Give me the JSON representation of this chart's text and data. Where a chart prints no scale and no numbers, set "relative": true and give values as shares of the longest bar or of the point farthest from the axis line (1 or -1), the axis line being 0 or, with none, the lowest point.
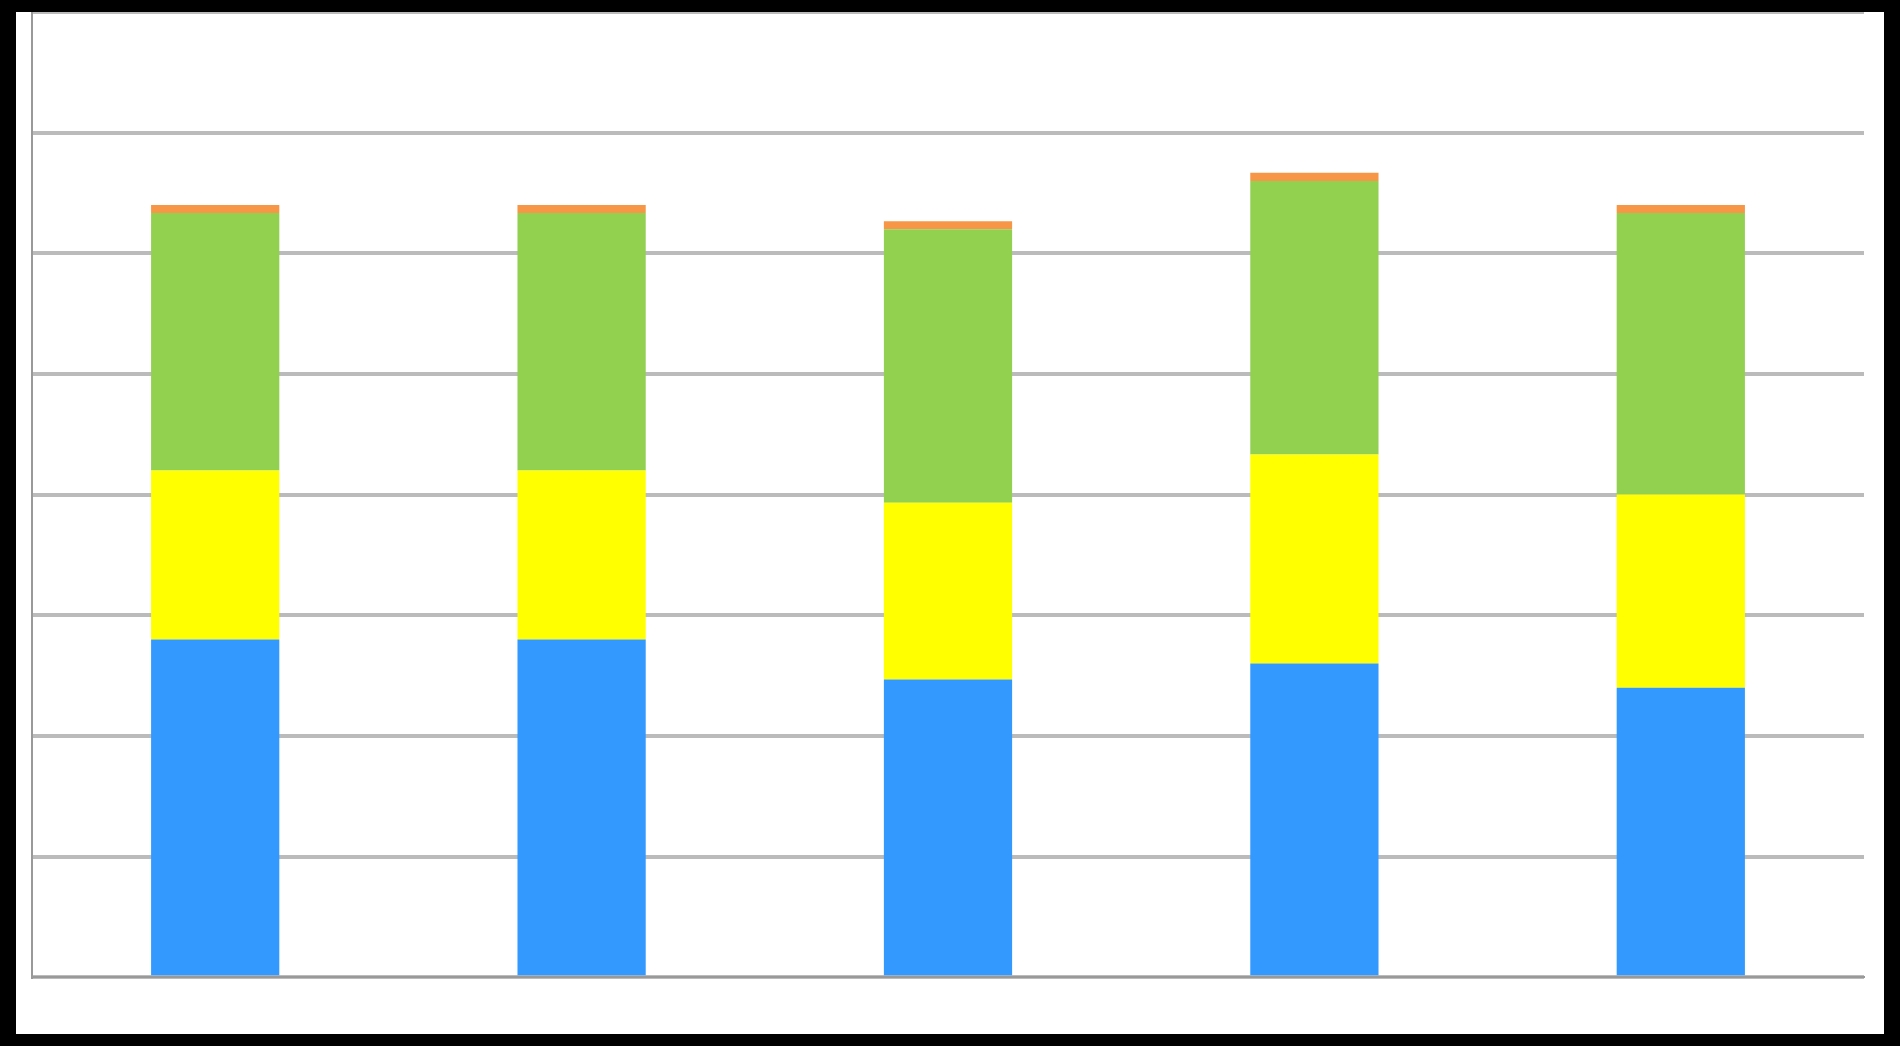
{
  "chart_data": {
    "type": "bar",
    "relative": true,
    "stacked": true,
    "grid": "y",
    "legend": false,
    "categories": [
      null,
      null,
      null,
      null,
      null
    ],
    "series": [
      {
        "color": "#3399ff",
        "values": [
          0.42,
          0.42,
          0.37,
          0.39,
          0.36
        ]
      },
      {
        "color": "#ffff00",
        "values": [
          0.21,
          0.21,
          0.22,
          0.26,
          0.24
        ]
      },
      {
        "color": "#92d050",
        "values": [
          0.32,
          0.32,
          0.34,
          0.34,
          0.35
        ]
      },
      {
        "color": "#f79646",
        "values": [
          0.01,
          0.01,
          0.01,
          0.01,
          0.01
        ]
      }
    ]
  }
}
